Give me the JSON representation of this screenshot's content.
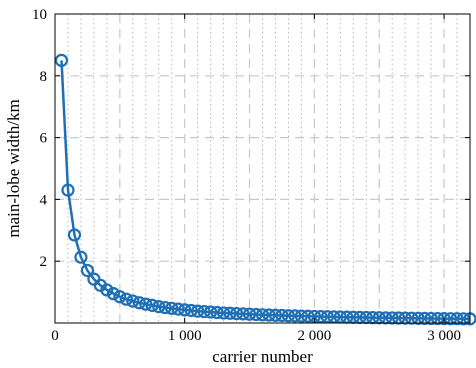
{
  "chart_data": {
    "type": "line",
    "title": "",
    "xlabel": "carrier number",
    "ylabel": "main-lobe width/km",
    "xlim": [
      0,
      3200
    ],
    "ylim": [
      0,
      10
    ],
    "xticks": [
      0,
      1000,
      2000,
      3000
    ],
    "xtick_labels": [
      "0",
      "1 000",
      "2 000",
      "3 000"
    ],
    "yticks": [
      2,
      4,
      6,
      8,
      10
    ],
    "ytick_labels": [
      "2",
      "4",
      "6",
      "8",
      "10"
    ],
    "grid": true,
    "legend": "none",
    "color": "#1f6fb4",
    "series": [
      {
        "marker": "circle",
        "x": [
          50,
          100,
          150,
          200,
          250,
          300,
          350,
          400,
          450,
          500,
          550,
          600,
          650,
          700,
          750,
          800,
          850,
          900,
          950,
          1000,
          1050,
          1100,
          1150,
          1200,
          1250,
          1300,
          1350,
          1400,
          1450,
          1500,
          1550,
          1600,
          1650,
          1700,
          1750,
          1800,
          1850,
          1900,
          1950,
          2000,
          2050,
          2100,
          2150,
          2200,
          2250,
          2300,
          2350,
          2400,
          2450,
          2500,
          2550,
          2600,
          2650,
          2700,
          2750,
          2800,
          2850,
          2900,
          2950,
          3000,
          3050,
          3100,
          3150,
          3200
        ],
        "y": [
          8.5,
          4.3,
          2.85,
          2.13,
          1.7,
          1.42,
          1.22,
          1.07,
          0.95,
          0.85,
          0.77,
          0.71,
          0.655,
          0.61,
          0.57,
          0.53,
          0.5,
          0.475,
          0.45,
          0.425,
          0.405,
          0.385,
          0.37,
          0.355,
          0.34,
          0.325,
          0.315,
          0.305,
          0.295,
          0.285,
          0.275,
          0.265,
          0.258,
          0.25,
          0.243,
          0.236,
          0.23,
          0.224,
          0.218,
          0.213,
          0.207,
          0.202,
          0.198,
          0.193,
          0.189,
          0.185,
          0.181,
          0.177,
          0.173,
          0.17,
          0.167,
          0.164,
          0.161,
          0.158,
          0.155,
          0.152,
          0.149,
          0.147,
          0.144,
          0.142,
          0.14,
          0.137,
          0.135,
          0.133
        ]
      }
    ]
  }
}
